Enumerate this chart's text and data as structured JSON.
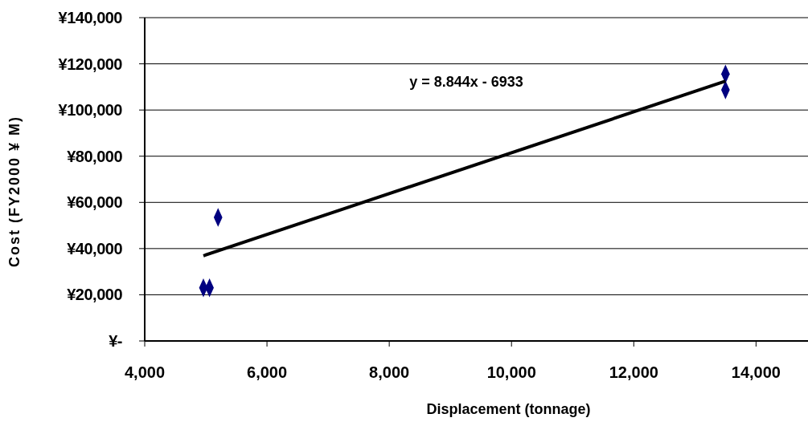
{
  "chart_data": {
    "type": "scatter",
    "xlabel": "Displacement (tonnage)",
    "ylabel": "Cost (FY2000 ¥ M)",
    "xlim": [
      4000,
      14850
    ],
    "xticks": [
      {
        "value": 4000,
        "label": "4,000"
      },
      {
        "value": 6000,
        "label": "6,000"
      },
      {
        "value": 8000,
        "label": "8,000"
      },
      {
        "value": 10000,
        "label": "10,000"
      },
      {
        "value": 12000,
        "label": "12,000"
      },
      {
        "value": 14000,
        "label": "14,000"
      }
    ],
    "ylim": [
      0,
      140000
    ],
    "yticks": [
      {
        "value": 0,
        "label": "¥-"
      },
      {
        "value": 20000,
        "label": "¥20,000"
      },
      {
        "value": 40000,
        "label": "¥40,000"
      },
      {
        "value": 60000,
        "label": "¥60,000"
      },
      {
        "value": 80000,
        "label": "¥80,000"
      },
      {
        "value": 100000,
        "label": "¥100,000"
      },
      {
        "value": 120000,
        "label": "¥120,000"
      },
      {
        "value": 140000,
        "label": "¥140,000"
      }
    ],
    "grid": "y",
    "series": [
      {
        "color": "#000080",
        "marker": "diamond",
        "x": [
          4960,
          5060,
          5200,
          13500,
          13500
        ],
        "values": [
          23000,
          23000,
          53500,
          115600,
          108700
        ]
      },
      {
        "type": "line",
        "color": "#000000",
        "x": [
          4960,
          13500
        ],
        "values": [
          36900,
          112500
        ]
      }
    ],
    "annotations": [
      "y = 8.844x - 6933"
    ]
  }
}
